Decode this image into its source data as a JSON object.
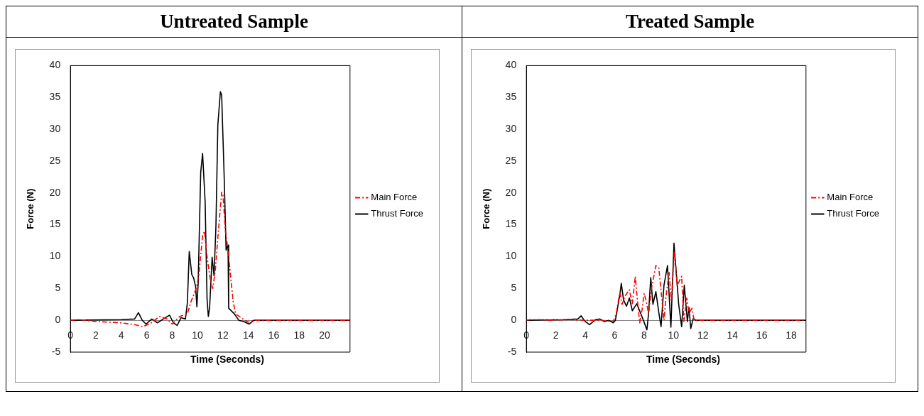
{
  "chart_data": [
    {
      "type": "line",
      "title": "Untreated Sample",
      "xlabel": "Time (Seconds)",
      "ylabel": "Force (N)",
      "xlim": [
        0,
        22
      ],
      "xticks": [
        0,
        2,
        4,
        6,
        8,
        10,
        12,
        14,
        16,
        18,
        20
      ],
      "ylim": [
        -5,
        40
      ],
      "yticks": [
        -5,
        0,
        5,
        10,
        15,
        20,
        25,
        30,
        35,
        40
      ],
      "legend": "right",
      "grid": false,
      "series": [
        {
          "name": "Main Force",
          "color": "#ff0000",
          "line_style": "dashed",
          "x": [
            0,
            0.7,
            2,
            3,
            4,
            5.1,
            5.7,
            6.3,
            7,
            7.6,
            8,
            8.6,
            9.2,
            9.5,
            9.9,
            10.1,
            10.4,
            10.55,
            10.75,
            11,
            11.2,
            11.4,
            11.6,
            11.9,
            12,
            12.2,
            12.4,
            12.6,
            12.8,
            13,
            13.5,
            14,
            14.4,
            22
          ],
          "values": [
            0,
            0.1,
            -0.2,
            -0.3,
            -0.4,
            -0.7,
            -1,
            -0.5,
            0.6,
            0.2,
            -0.6,
            0.6,
            1,
            3,
            5,
            7,
            13.3,
            14,
            10,
            6.5,
            5,
            7.8,
            13,
            20.1,
            19.7,
            14,
            11,
            7,
            3,
            1,
            0.3,
            -0.3,
            0,
            0
          ]
        },
        {
          "name": "Thrust Force",
          "color": "#000000",
          "line_style": "solid",
          "x": [
            0,
            4,
            5.05,
            5.35,
            5.65,
            5.95,
            6.4,
            6.85,
            7.3,
            7.8,
            8.1,
            8.4,
            8.7,
            9.05,
            9.2,
            9.35,
            9.55,
            9.7,
            9.85,
            9.95,
            10.05,
            10.25,
            10.4,
            10.6,
            10.75,
            10.85,
            10.95,
            11.15,
            11.3,
            11.45,
            11.6,
            11.8,
            11.9,
            12.1,
            12.25,
            12.4,
            12.45,
            12.9,
            13.25,
            13.65,
            14.05,
            14.45,
            22
          ],
          "values": [
            0,
            0.1,
            0.2,
            1.2,
            0,
            -0.6,
            0.2,
            -0.4,
            0.2,
            0.8,
            -0.4,
            -0.8,
            0.4,
            0.2,
            2.7,
            10.8,
            7.2,
            6.6,
            5.3,
            2.1,
            5.7,
            23.2,
            26.2,
            18.6,
            3.4,
            0.6,
            1.9,
            9.9,
            7,
            14.8,
            30.7,
            35.9,
            35.4,
            22.4,
            11,
            11.8,
            1.9,
            1,
            0,
            -0.2,
            -0.6,
            0,
            0
          ]
        }
      ]
    },
    {
      "type": "line",
      "title": "Treated Sample",
      "xlabel": "Time (Seconds)",
      "ylabel": "Force (N)",
      "xlim": [
        0,
        19
      ],
      "xticks": [
        0,
        2,
        4,
        6,
        8,
        10,
        12,
        14,
        16,
        18
      ],
      "ylim": [
        -5,
        40
      ],
      "yticks": [
        -5,
        0,
        5,
        10,
        15,
        20,
        25,
        30,
        35,
        40
      ],
      "legend": "right",
      "grid": false,
      "series": [
        {
          "name": "Main Force",
          "color": "#ff0000",
          "line_style": "dashed",
          "x": [
            0,
            0.3,
            1,
            1.5,
            3,
            4,
            5,
            5.9,
            6.1,
            6.35,
            6.5,
            6.7,
            7,
            7.2,
            7.4,
            7.55,
            7.7,
            7.85,
            8,
            8.15,
            8.3,
            8.5,
            8.8,
            9,
            9.2,
            9.35,
            9.5,
            9.7,
            9.85,
            10.06,
            10.25,
            10.55,
            10.7,
            10.9,
            11.05,
            11.25,
            11.4,
            19
          ],
          "values": [
            0,
            0.1,
            0.1,
            0,
            0.1,
            0,
            0,
            -0.2,
            1,
            4.4,
            2.5,
            3.8,
            4.8,
            2.6,
            6.9,
            3,
            -0.4,
            1.5,
            4.2,
            3,
            1,
            5,
            8.6,
            8.2,
            3.5,
            0,
            4,
            7.5,
            3,
            10.9,
            5.5,
            6.9,
            -0.2,
            3.5,
            1,
            1.9,
            0,
            0
          ]
        },
        {
          "name": "Thrust Force",
          "color": "#000000",
          "line_style": "solid",
          "x": [
            0,
            2.6,
            3.5,
            3.72,
            4,
            4.29,
            4.7,
            5,
            5.3,
            5.6,
            5.9,
            6.05,
            6.35,
            6.45,
            6.6,
            6.8,
            7,
            7.2,
            7.5,
            7.8,
            8,
            8.19,
            8.3,
            8.45,
            8.6,
            8.8,
            9,
            9.15,
            9.35,
            9.59,
            9.7,
            9.82,
            10.03,
            10.2,
            10.35,
            10.55,
            10.73,
            10.94,
            11.05,
            11.17,
            11.34,
            11.5,
            19
          ],
          "values": [
            0,
            0.1,
            0.2,
            0.7,
            -0.2,
            -0.7,
            0.1,
            0.2,
            -0.2,
            0,
            -0.4,
            0,
            4,
            5.8,
            3.2,
            2.2,
            3.5,
            1.5,
            2.6,
            0.9,
            -0.3,
            -1.5,
            1,
            6.7,
            2.5,
            4.5,
            1.2,
            -1,
            5.5,
            8.6,
            4,
            -1.1,
            12.1,
            7,
            2.5,
            -1,
            5.5,
            -0.2,
            2,
            -1.3,
            0.3,
            0,
            0
          ]
        }
      ]
    }
  ]
}
